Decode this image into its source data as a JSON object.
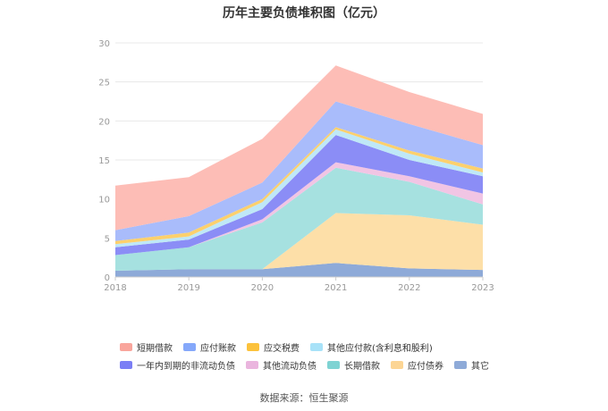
{
  "chart_data": {
    "type": "area",
    "stacked": true,
    "title": "历年主要负债堆积图（亿元）",
    "xlabel": "",
    "ylabel": "",
    "categories": [
      "2018",
      "2019",
      "2020",
      "2021",
      "2022",
      "2023"
    ],
    "ylim": [
      0,
      30
    ],
    "yticks": [
      0,
      5,
      10,
      15,
      20,
      25,
      30
    ],
    "grid": true,
    "legend_position": "bottom",
    "series": [
      {
        "name": "其它",
        "color": "#8eaad8",
        "values": [
          0.8,
          1.0,
          1.0,
          1.8,
          1.1,
          0.9
        ]
      },
      {
        "name": "应付债券",
        "color": "#fddfa8",
        "values": [
          0,
          0,
          0,
          6.4,
          6.8,
          5.8
        ]
      },
      {
        "name": "长期借款",
        "color": "#a6e1e0",
        "values": [
          2.0,
          2.8,
          6.0,
          5.8,
          4.3,
          2.6
        ]
      },
      {
        "name": "其他流动负债",
        "color": "#f1c5e4",
        "values": [
          0,
          0,
          0.4,
          0.7,
          0.7,
          1.4
        ]
      },
      {
        "name": "一年内到期的非流动负债",
        "color": "#8b8df6",
        "values": [
          1.0,
          1.0,
          1.3,
          3.5,
          2.1,
          2.2
        ]
      },
      {
        "name": "其他应付款(含利息和股利)",
        "color": "#bfe8f7",
        "values": [
          0.4,
          0.4,
          0.9,
          0.7,
          0.8,
          0.5
        ]
      },
      {
        "name": "应交税费",
        "color": "#fcd06d",
        "values": [
          0.4,
          0.5,
          0.4,
          0.3,
          0.4,
          0.5
        ]
      },
      {
        "name": "应付账款",
        "color": "#a9bcfb",
        "values": [
          1.4,
          2.1,
          2.1,
          3.3,
          3.4,
          3.0
        ]
      },
      {
        "name": "短期借款",
        "color": "#fdbdb6",
        "values": [
          5.7,
          5.0,
          5.6,
          4.6,
          4.1,
          4.0
        ]
      }
    ],
    "legend_order": [
      "短期借款",
      "应付账款",
      "应交税费",
      "其他应付款(含利息和股利)",
      "一年内到期的非流动负债",
      "其他流动负债",
      "长期借款",
      "应付债券",
      "其它"
    ],
    "legend_swatch_colors": {
      "短期借款": "#f9a59c",
      "应付账款": "#85a8fa",
      "应交税费": "#fcc23c",
      "其他应付款(含利息和股利)": "#a8e2f8",
      "一年内到期的非流动负债": "#7b7ef5",
      "其他流动负债": "#eab5de",
      "长期借款": "#7fd3d3",
      "应付债券": "#fcd594",
      "其它": "#8eaad8"
    }
  },
  "source": "数据来源：恒生聚源",
  "colors": {
    "grid": "#e8e8e8",
    "axis": "#cccccc",
    "tick_text": "#999999"
  }
}
